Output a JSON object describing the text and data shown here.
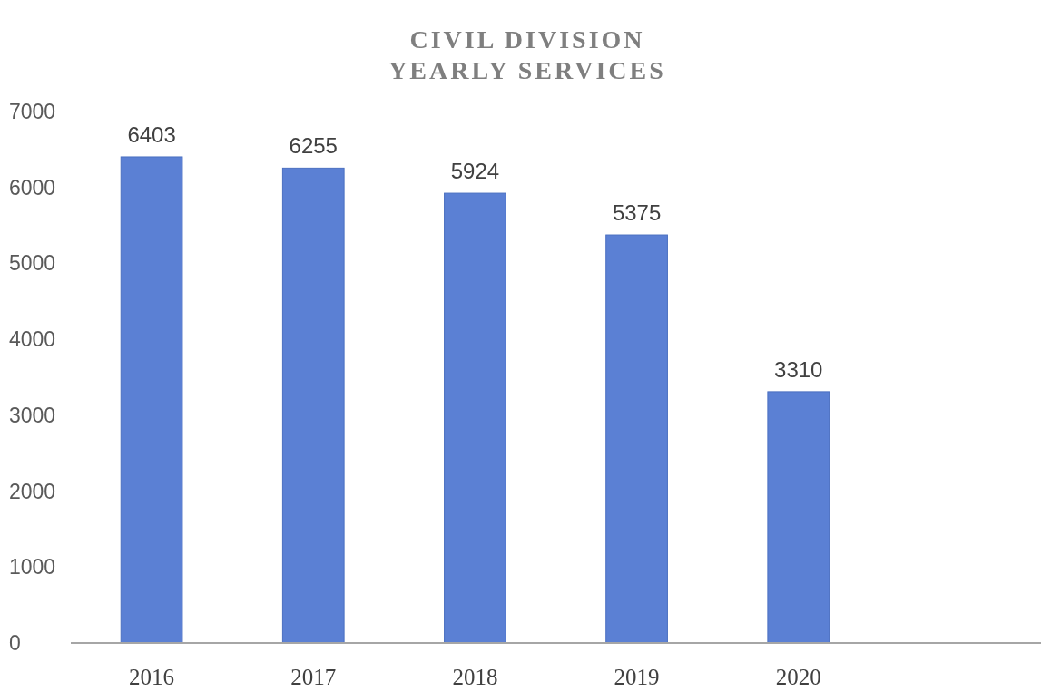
{
  "chart_data": {
    "type": "bar",
    "title": "CIVIL DIVISION\nYEARLY SERVICES",
    "categories": [
      "2016",
      "2017",
      "2018",
      "2019",
      "2020",
      null
    ],
    "values": [
      6403,
      6255,
      5924,
      5375,
      3310,
      null
    ],
    "color": "#5b80d4",
    "ylim": [
      0,
      7000
    ],
    "yticks": [
      0,
      1000,
      2000,
      3000,
      4000,
      5000,
      6000,
      7000
    ],
    "grid": false,
    "data_labels": true
  }
}
